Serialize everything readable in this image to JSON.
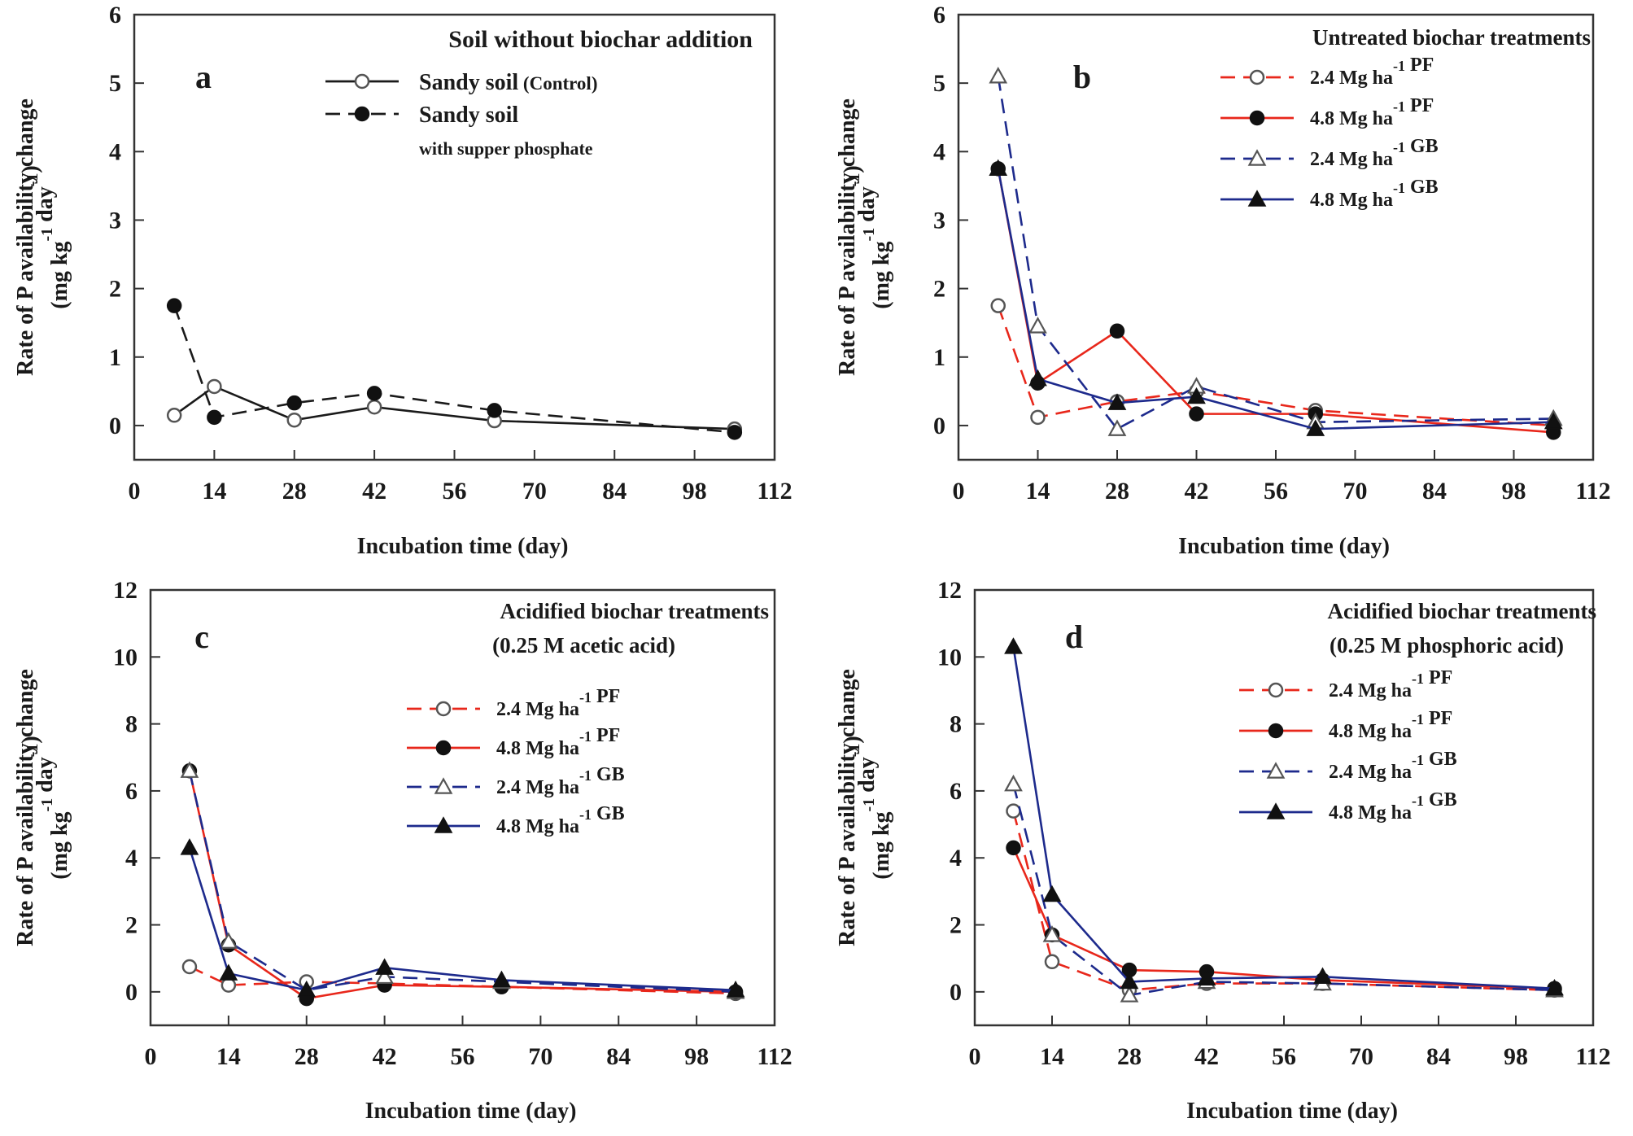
{
  "colors": {
    "black": "#1a1a1a",
    "red": "#e8271b",
    "navy": "#1d2a8c",
    "axis": "#333333"
  },
  "chart_data": [
    {
      "type": "line",
      "panel": "a",
      "title": "Soil without biochar addition",
      "subtitle": "",
      "xlabel": "Incubation time (day)",
      "ylabel_line1": "Rate of P availability change",
      "ylabel_line2": "(mg kg⁻¹ day⁻¹)",
      "xlim": [
        0,
        112
      ],
      "ylim": [
        -0.5,
        6
      ],
      "xticks": [
        0,
        14,
        28,
        42,
        56,
        70,
        84,
        98,
        112
      ],
      "yticks": [
        0,
        1,
        2,
        3,
        4,
        5,
        6
      ],
      "legend_position": "top-right",
      "series": [
        {
          "name": "Sandy soil",
          "name_suffix": " (Control)",
          "note": "",
          "color": "#1a1a1a",
          "marker": "circle-open",
          "dash": "solid",
          "x": [
            7,
            14,
            28,
            42,
            63,
            105
          ],
          "y": [
            0.15,
            0.57,
            0.08,
            0.27,
            0.07,
            -0.05
          ]
        },
        {
          "name": "Sandy soil",
          "name_suffix": "",
          "note": "with supper phosphate",
          "color": "#1a1a1a",
          "marker": "circle-filled",
          "dash": "dashed",
          "x": [
            7,
            14,
            28,
            42,
            63,
            105
          ],
          "y": [
            1.75,
            0.12,
            0.33,
            0.47,
            0.22,
            -0.1
          ]
        }
      ]
    },
    {
      "type": "line",
      "panel": "b",
      "title": "Untreated biochar treatments",
      "subtitle": "",
      "xlabel": "Incubation time (day)",
      "ylabel_line1": "Rate of P availability change",
      "ylabel_line2": "(mg kg⁻¹ day⁻¹)",
      "xlim": [
        0,
        112
      ],
      "ylim": [
        -0.5,
        6
      ],
      "xticks": [
        0,
        14,
        28,
        42,
        56,
        70,
        84,
        98,
        112
      ],
      "yticks": [
        0,
        1,
        2,
        3,
        4,
        5,
        6
      ],
      "legend_position": "top-right",
      "series": [
        {
          "name": "2.4 Mg ha⁻¹ PF",
          "color": "#e8271b",
          "marker": "circle-open",
          "dash": "dashed",
          "x": [
            7,
            14,
            28,
            42,
            63,
            105
          ],
          "y": [
            1.75,
            0.12,
            0.35,
            0.5,
            0.22,
            0.0
          ]
        },
        {
          "name": "4.8 Mg ha⁻¹ PF",
          "color": "#e8271b",
          "marker": "circle-filled",
          "dash": "solid",
          "x": [
            7,
            14,
            28,
            42,
            63,
            105
          ],
          "y": [
            3.75,
            0.62,
            1.38,
            0.17,
            0.17,
            -0.1
          ]
        },
        {
          "name": "2.4 Mg ha⁻¹ GB",
          "color": "#1d2a8c",
          "marker": "triangle-open",
          "dash": "dashed",
          "x": [
            7,
            14,
            28,
            42,
            63,
            105
          ],
          "y": [
            5.1,
            1.45,
            -0.05,
            0.57,
            0.05,
            0.1
          ]
        },
        {
          "name": "4.8 Mg ha⁻¹ GB",
          "color": "#1d2a8c",
          "marker": "triangle-filled",
          "dash": "solid",
          "x": [
            7,
            14,
            28,
            42,
            63,
            105
          ],
          "y": [
            3.75,
            0.68,
            0.33,
            0.42,
            -0.05,
            0.05
          ]
        }
      ]
    },
    {
      "type": "line",
      "panel": "c",
      "title": "Acidified biochar treatments",
      "subtitle": "(0.25 M acetic acid)",
      "xlabel": "Incubation time (day)",
      "ylabel_line1": "Rate of P availability change",
      "ylabel_line2": "(mg kg⁻¹ day⁻¹)",
      "xlim": [
        0,
        112
      ],
      "ylim": [
        -1,
        12
      ],
      "xticks": [
        0,
        14,
        28,
        42,
        56,
        70,
        84,
        98,
        112
      ],
      "yticks": [
        0,
        2,
        4,
        6,
        8,
        10,
        12
      ],
      "legend_position": "right",
      "series": [
        {
          "name": "2.4 Mg ha⁻¹ PF",
          "color": "#e8271b",
          "marker": "circle-open",
          "dash": "dashed",
          "x": [
            7,
            14,
            28,
            42,
            63,
            105
          ],
          "y": [
            0.75,
            0.2,
            0.3,
            0.25,
            0.15,
            -0.05
          ]
        },
        {
          "name": "4.8 Mg ha⁻¹ PF",
          "color": "#e8271b",
          "marker": "circle-filled",
          "dash": "solid",
          "x": [
            7,
            14,
            28,
            42,
            63,
            105
          ],
          "y": [
            6.6,
            1.4,
            -0.2,
            0.2,
            0.15,
            0.0
          ]
        },
        {
          "name": "2.4 Mg ha⁻¹ GB",
          "color": "#1d2a8c",
          "marker": "triangle-open",
          "dash": "dashed",
          "x": [
            7,
            14,
            28,
            42,
            63,
            105
          ],
          "y": [
            6.6,
            1.5,
            0.05,
            0.45,
            0.3,
            0.0
          ]
        },
        {
          "name": "4.8 Mg ha⁻¹ GB",
          "color": "#1d2a8c",
          "marker": "triangle-filled",
          "dash": "solid",
          "x": [
            7,
            14,
            28,
            42,
            63,
            105
          ],
          "y": [
            4.3,
            0.55,
            0.05,
            0.72,
            0.35,
            0.05
          ]
        }
      ]
    },
    {
      "type": "line",
      "panel": "d",
      "title": "Acidified biochar treatments",
      "subtitle": "(0.25 M phosphoric acid)",
      "xlabel": "Incubation time (day)",
      "ylabel_line1": "Rate of P availability change",
      "ylabel_line2": "(mg kg⁻¹ day⁻¹)",
      "xlim": [
        0,
        112
      ],
      "ylim": [
        -1,
        12
      ],
      "xticks": [
        0,
        14,
        28,
        42,
        56,
        70,
        84,
        98,
        112
      ],
      "yticks": [
        0,
        2,
        4,
        6,
        8,
        10,
        12
      ],
      "legend_position": "right",
      "series": [
        {
          "name": "2.4 Mg ha⁻¹ PF",
          "color": "#e8271b",
          "marker": "circle-open",
          "dash": "dashed",
          "x": [
            7,
            14,
            28,
            42,
            63,
            105
          ],
          "y": [
            5.4,
            0.9,
            0.05,
            0.25,
            0.25,
            0.05
          ]
        },
        {
          "name": "4.8 Mg ha⁻¹ PF",
          "color": "#e8271b",
          "marker": "circle-filled",
          "dash": "solid",
          "x": [
            7,
            14,
            28,
            42,
            63,
            105
          ],
          "y": [
            4.3,
            1.7,
            0.65,
            0.6,
            0.35,
            0.1
          ]
        },
        {
          "name": "2.4 Mg ha⁻¹ GB",
          "color": "#1d2a8c",
          "marker": "triangle-open",
          "dash": "dashed",
          "x": [
            7,
            14,
            28,
            42,
            63,
            105
          ],
          "y": [
            6.2,
            1.7,
            -0.1,
            0.3,
            0.25,
            0.05
          ]
        },
        {
          "name": "4.8 Mg ha⁻¹ GB",
          "color": "#1d2a8c",
          "marker": "triangle-filled",
          "dash": "solid",
          "x": [
            7,
            14,
            28,
            42,
            63,
            105
          ],
          "y": [
            10.3,
            2.9,
            0.3,
            0.4,
            0.45,
            0.1
          ]
        }
      ]
    }
  ]
}
